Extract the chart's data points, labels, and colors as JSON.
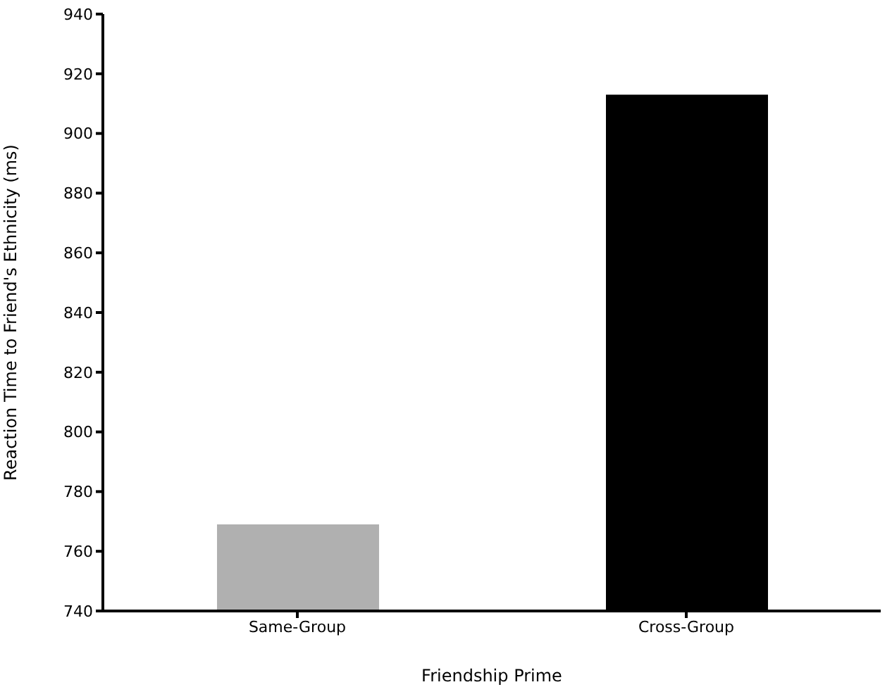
{
  "chart_data": {
    "type": "bar",
    "xlabel": "Friendship Prime",
    "ylabel": "Reaction Time to Friend's Ethnicity (ms)",
    "categories": [
      "Same-Group",
      "Cross-Group"
    ],
    "values": [
      769,
      913
    ],
    "colors": [
      "#b0b0b0",
      "#000000"
    ],
    "ylim": [
      740,
      940
    ],
    "yticks": [
      740,
      760,
      780,
      800,
      820,
      840,
      860,
      880,
      900,
      920,
      940
    ],
    "grid": false,
    "legend": false
  }
}
